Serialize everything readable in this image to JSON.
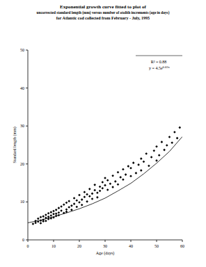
{
  "chart_data": {
    "type": "scatter",
    "title": "Exponential growth curve fitted to plot of",
    "subtitle": [
      "uncorrected standard length (mm) versus number of otolith increments (age in days)",
      "for Atlantic cod collected from February - July, 1995"
    ],
    "x_label": "Age (days)",
    "y_label": "Standard length (mm)",
    "annotations": [
      {
        "text": "R² = 0.88"
      },
      {
        "text": "y = 4.5e",
        "sup": "0.03x"
      }
    ],
    "xlim": [
      0,
      60
    ],
    "xticks": [
      0,
      10,
      20,
      30,
      40,
      50,
      60
    ],
    "ylim": [
      0,
      50
    ],
    "yticks": [
      0,
      10,
      20,
      30,
      40,
      50
    ],
    "grid": false,
    "series": [
      {
        "type": "scatter",
        "color": "#000000",
        "marker": "diamond",
        "x": [
          2,
          3,
          3,
          4,
          4,
          5,
          5,
          5,
          6,
          6,
          6,
          7,
          7,
          7,
          8,
          8,
          8,
          9,
          9,
          9,
          10,
          10,
          10,
          11,
          11,
          11,
          12,
          12,
          12,
          13,
          13,
          14,
          14,
          15,
          15,
          15,
          16,
          16,
          17,
          17,
          18,
          18,
          19,
          19,
          20,
          20,
          21,
          21,
          22,
          22,
          23,
          23,
          24,
          24,
          25,
          25,
          26,
          26,
          27,
          27,
          28,
          28,
          29,
          29,
          30,
          30,
          31,
          31,
          32,
          33,
          33,
          34,
          35,
          35,
          36,
          37,
          37,
          38,
          39,
          40,
          40,
          41,
          42,
          43,
          44,
          44,
          45,
          46,
          47,
          48,
          49,
          50,
          50,
          51,
          52,
          53,
          54,
          55,
          56,
          57,
          58,
          59
        ],
        "values": [
          4.2,
          4.5,
          5.0,
          4.8,
          5.6,
          5.1,
          4.4,
          6.0,
          5.3,
          6.2,
          4.9,
          5.8,
          6.6,
          5.0,
          6.1,
          7.0,
          5.5,
          6.4,
          5.7,
          7.3,
          6.8,
          5.9,
          7.6,
          6.3,
          7.9,
          6.9,
          7.2,
          8.4,
          6.5,
          7.7,
          8.8,
          7.1,
          9.3,
          8.0,
          9.8,
          7.4,
          8.6,
          10.2,
          9.0,
          7.9,
          9.5,
          11.0,
          8.7,
          10.4,
          9.9,
          11.8,
          10.6,
          9.2,
          11.3,
          12.6,
          10.1,
          12.0,
          11.5,
          13.4,
          12.2,
          10.8,
          13.1,
          14.5,
          12.4,
          11.2,
          14.0,
          12.9,
          15.2,
          13.6,
          14.4,
          16.3,
          13.2,
          15.7,
          14.8,
          16.9,
          13.9,
          15.4,
          17.8,
          14.6,
          16.5,
          18.6,
          15.9,
          17.2,
          19.4,
          16.8,
          18.9,
          20.3,
          17.6,
          19.8,
          21.4,
          18.3,
          20.6,
          22.7,
          19.5,
          21.8,
          23.5,
          20.9,
          24.6,
          22.3,
          25.8,
          23.7,
          24.9,
          27.1,
          25.6,
          28.4,
          26.8,
          29.6
        ]
      },
      {
        "type": "line",
        "color": "#000000",
        "line_style": "solid",
        "x": [
          0,
          5,
          10,
          15,
          20,
          25,
          30,
          35,
          40,
          45,
          50,
          55,
          60
        ],
        "values": [
          4.5,
          5.2,
          6.1,
          7.1,
          8.2,
          9.5,
          11.0,
          12.9,
          14.9,
          17.4,
          20.2,
          23.3,
          27.2
        ]
      }
    ]
  }
}
